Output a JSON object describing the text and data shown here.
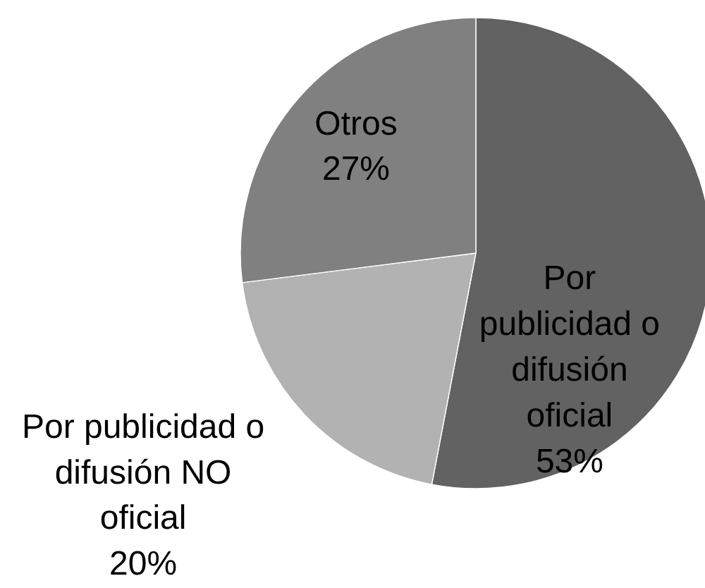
{
  "chart_data": {
    "type": "pie",
    "categories": [
      "Por publicidad o difusión oficial",
      "Por publicidad o difusión NO oficial",
      "Otros"
    ],
    "values": [
      53,
      20,
      27
    ],
    "colors": [
      "#626262",
      "#b2b2b2",
      "#808080"
    ],
    "value_labels": [
      "53%",
      "20%",
      "27%"
    ]
  }
}
